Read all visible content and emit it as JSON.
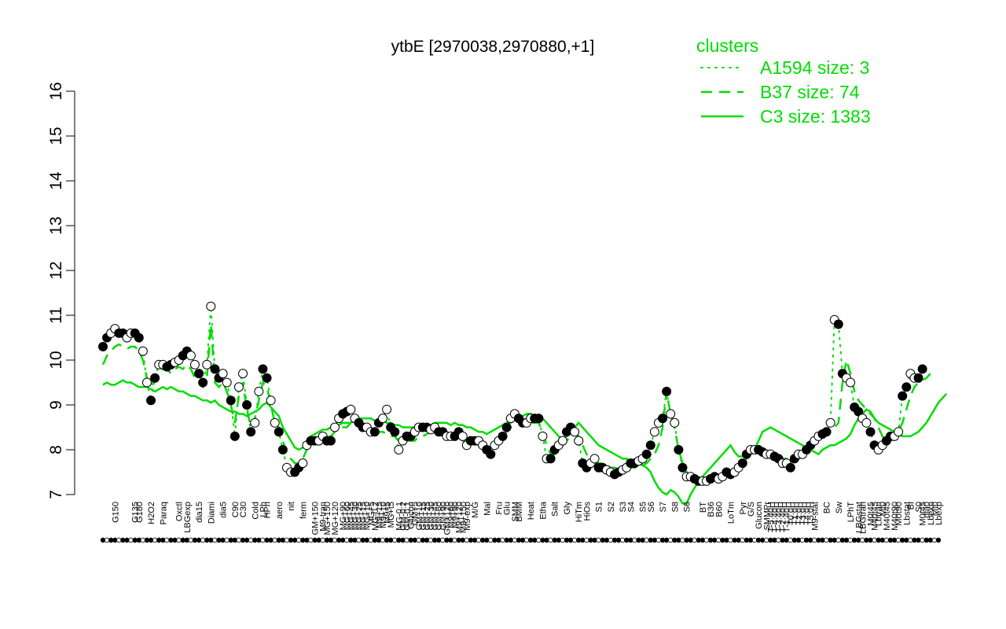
{
  "chart_data": {
    "type": "line",
    "title": "ytbE [2970038,2970880,+1]",
    "xlabel": "",
    "ylabel": "",
    "ylim": [
      7,
      16
    ],
    "yticks": [
      7,
      8,
      9,
      10,
      11,
      12,
      13,
      14,
      15,
      16
    ],
    "n_conditions": 210,
    "xtick_labels": [
      {
        "i": 3,
        "label": "G150"
      },
      {
        "i": 8,
        "label": "G135"
      },
      {
        "i": 9,
        "label": "G180"
      },
      {
        "i": 12,
        "label": "H2O2"
      },
      {
        "i": 15,
        "label": "Paraq"
      },
      {
        "i": 19,
        "label": "Oxctl"
      },
      {
        "i": 21,
        "label": "LBGexp"
      },
      {
        "i": 24,
        "label": "dia15"
      },
      {
        "i": 27,
        "label": "Diami"
      },
      {
        "i": 30,
        "label": "dia5"
      },
      {
        "i": 33,
        "label": "C90"
      },
      {
        "i": 35,
        "label": "C30"
      },
      {
        "i": 38,
        "label": "Cold"
      },
      {
        "i": 40,
        "label": "LPh"
      },
      {
        "i": 41,
        "label": "HPh"
      },
      {
        "i": 44,
        "label": "aero"
      },
      {
        "i": 47,
        "label": "nit"
      },
      {
        "i": 50,
        "label": "ferm"
      },
      {
        "i": 53,
        "label": "GM+150"
      },
      {
        "i": 55,
        "label": "M9-tran"
      },
      {
        "i": 56,
        "label": "MG+150"
      },
      {
        "i": 58,
        "label": "MG+120"
      },
      {
        "i": 60,
        "label": "MG+90"
      },
      {
        "i": 61,
        "label": "MG+60"
      },
      {
        "i": 62,
        "label": "MG+45"
      },
      {
        "i": 63,
        "label": "MG+30"
      },
      {
        "i": 64,
        "label": "MG+25"
      },
      {
        "i": 65,
        "label": "MG+15"
      },
      {
        "i": 66,
        "label": "MG+10"
      },
      {
        "i": 67,
        "label": "MG+5"
      },
      {
        "i": 68,
        "label": "MG-0.2"
      },
      {
        "i": 69,
        "label": "M9+15"
      },
      {
        "i": 70,
        "label": "M9+10"
      },
      {
        "i": 71,
        "label": "M9+5"
      },
      {
        "i": 72,
        "label": "MG+t5"
      },
      {
        "i": 74,
        "label": "MG-0.1"
      },
      {
        "i": 75,
        "label": "GM-0.2"
      },
      {
        "i": 76,
        "label": "GM-0.1"
      },
      {
        "i": 77,
        "label": "Glucon"
      },
      {
        "i": 78,
        "label": "GM+5"
      },
      {
        "i": 79,
        "label": "GM+10"
      },
      {
        "i": 80,
        "label": "GM+15"
      },
      {
        "i": 81,
        "label": "GM+25"
      },
      {
        "i": 82,
        "label": "GM+30"
      },
      {
        "i": 83,
        "label": "GM+45"
      },
      {
        "i": 84,
        "label": "GM+60"
      },
      {
        "i": 85,
        "label": "GM+90"
      },
      {
        "i": 86,
        "label": "GM+120"
      },
      {
        "i": 87,
        "label": "M9+60"
      },
      {
        "i": 88,
        "label": "M9+90"
      },
      {
        "i": 89,
        "label": "M9+120"
      },
      {
        "i": 90,
        "label": "M9+150"
      },
      {
        "i": 91,
        "label": "M9-exp"
      },
      {
        "i": 93,
        "label": "M/G"
      },
      {
        "i": 96,
        "label": "Mal"
      },
      {
        "i": 99,
        "label": "Fru"
      },
      {
        "i": 101,
        "label": "Glu"
      },
      {
        "i": 103,
        "label": "SMM"
      },
      {
        "i": 104,
        "label": "BMM"
      },
      {
        "i": 107,
        "label": "Heat"
      },
      {
        "i": 110,
        "label": "Etha"
      },
      {
        "i": 113,
        "label": "Salt"
      },
      {
        "i": 116,
        "label": "Gly"
      },
      {
        "i": 119,
        "label": "HiTm"
      },
      {
        "i": 121,
        "label": "HiOs"
      },
      {
        "i": 124,
        "label": "S1"
      },
      {
        "i": 127,
        "label": "S2"
      },
      {
        "i": 130,
        "label": "S3"
      },
      {
        "i": 132,
        "label": "S4"
      },
      {
        "i": 135,
        "label": "S5"
      },
      {
        "i": 137,
        "label": "S6"
      },
      {
        "i": 140,
        "label": "S7"
      },
      {
        "i": 143,
        "label": "S8"
      },
      {
        "i": 146,
        "label": "S6"
      },
      {
        "i": 150,
        "label": "BT"
      },
      {
        "i": 152,
        "label": "B36"
      },
      {
        "i": 154,
        "label": "B60"
      },
      {
        "i": 157,
        "label": "LoTm"
      },
      {
        "i": 160,
        "label": "Pyr"
      },
      {
        "i": 162,
        "label": "G/S"
      },
      {
        "i": 164,
        "label": "Glucon"
      },
      {
        "i": 166,
        "label": "SMMPr"
      },
      {
        "i": 167,
        "label": "T-5.40H"
      },
      {
        "i": 168,
        "label": "T-4.40H"
      },
      {
        "i": 169,
        "label": "T-3.40H"
      },
      {
        "i": 170,
        "label": "T-2.40H"
      },
      {
        "i": 171,
        "label": "T-1.40H"
      },
      {
        "i": 172,
        "label": "T0.0H"
      },
      {
        "i": 173,
        "label": "T1.0H"
      },
      {
        "i": 174,
        "label": "T2.0H"
      },
      {
        "i": 175,
        "label": "T3.0H"
      },
      {
        "i": 176,
        "label": "T4.0H"
      },
      {
        "i": 177,
        "label": "T5.0H"
      },
      {
        "i": 178,
        "label": "M9-stat"
      },
      {
        "i": 181,
        "label": "BC"
      },
      {
        "i": 184,
        "label": "Sw"
      },
      {
        "i": 187,
        "label": "LPhT"
      },
      {
        "i": 189,
        "label": "LBGstat"
      },
      {
        "i": 190,
        "label": "LBGtran"
      },
      {
        "i": 192,
        "label": "M0t45"
      },
      {
        "i": 193,
        "label": "M40t45"
      },
      {
        "i": 194,
        "label": "Lbtran"
      },
      {
        "i": 195,
        "label": "Mt0"
      },
      {
        "i": 196,
        "label": "M40t45"
      },
      {
        "i": 198,
        "label": "M40t90"
      },
      {
        "i": 199,
        "label": "M0t90"
      },
      {
        "i": 201,
        "label": "Lbstat"
      },
      {
        "i": 202,
        "label": "BI"
      },
      {
        "i": 204,
        "label": "S0"
      },
      {
        "i": 205,
        "label": "M0t45"
      },
      {
        "i": 206,
        "label": "dia0"
      },
      {
        "i": 207,
        "label": "Lbexp"
      },
      {
        "i": 208,
        "label": "Mt0"
      },
      {
        "i": 209,
        "label": "Lbexp"
      }
    ],
    "series": [
      {
        "name": "C3 size: 1383",
        "style": "solid",
        "values": [
          9.45,
          9.5,
          9.45,
          9.45,
          9.5,
          9.55,
          9.5,
          9.5,
          9.45,
          9.4,
          9.4,
          9.4,
          9.35,
          9.3,
          9.35,
          9.4,
          9.35,
          9.4,
          9.35,
          9.3,
          9.3,
          9.25,
          9.2,
          9.2,
          9.15,
          9.1,
          9.1,
          9.05,
          9.1,
          9.0,
          8.95,
          8.9,
          8.85,
          8.85,
          8.8,
          8.8,
          8.75,
          8.8,
          8.85,
          8.9,
          9.0,
          9.05,
          8.95,
          8.85,
          8.75,
          8.5,
          8.35,
          8.2,
          8.05,
          8.0,
          8.05,
          8.2,
          8.3,
          8.35,
          8.4,
          8.45,
          8.45,
          8.5,
          8.5,
          8.55,
          8.6,
          8.6,
          8.6,
          8.65,
          8.7,
          8.7,
          8.7,
          8.7,
          8.65,
          8.6,
          8.65,
          8.6,
          8.6,
          8.55,
          8.55,
          8.5,
          8.5,
          8.5,
          8.5,
          8.5,
          8.55,
          8.55,
          8.55,
          8.6,
          8.6,
          8.6,
          8.6,
          8.55,
          8.6,
          8.55,
          8.55,
          8.5,
          8.5,
          8.45,
          8.4,
          8.4,
          8.35,
          8.4,
          8.45,
          8.5,
          8.55,
          8.6,
          8.6,
          8.7,
          8.7,
          8.75,
          8.8,
          8.8,
          8.75,
          8.7,
          8.7,
          8.6,
          8.5,
          8.4,
          8.3,
          8.25,
          8.3,
          8.4,
          8.5,
          8.6,
          8.5,
          8.4,
          8.3,
          8.2,
          8.1,
          8.05,
          8.0,
          7.95,
          7.9,
          7.85,
          7.8,
          7.8,
          7.75,
          7.7,
          7.7,
          7.65,
          7.6,
          7.5,
          7.3,
          7.15,
          7.05,
          7.0,
          7.1,
          7.05,
          6.95,
          6.8,
          6.8,
          7.0,
          7.15,
          7.3,
          7.4,
          7.5,
          7.6,
          7.7,
          7.8,
          7.9,
          8.0,
          8.1,
          7.95,
          7.85,
          7.85,
          7.9,
          7.95,
          8.0,
          8.2,
          8.4,
          8.45,
          8.5,
          8.45,
          8.4,
          8.35,
          8.3,
          8.25,
          8.2,
          8.15,
          8.1,
          8.05,
          8.0,
          7.95,
          7.9,
          8.0,
          8.05,
          8.1,
          8.1,
          8.15,
          8.2,
          8.25,
          8.35,
          8.55,
          8.7,
          8.8,
          8.9,
          8.85,
          8.7,
          8.6,
          8.55,
          8.5,
          8.45,
          8.4,
          8.35,
          8.3,
          8.3,
          8.3,
          8.35,
          8.4,
          8.5,
          8.6,
          8.75,
          8.9,
          9.05,
          9.15,
          9.25
        ]
      },
      {
        "name": "B37 size: 74",
        "style": "dashed",
        "values": [
          9.9,
          10.1,
          10.2,
          10.3,
          10.35,
          10.3,
          10.25,
          10.3,
          10.3,
          10.2,
          10.0,
          9.6,
          9.4,
          9.6,
          9.7,
          9.8,
          9.8,
          9.7,
          9.8,
          9.85,
          9.8,
          9.9,
          9.8,
          9.6,
          9.5,
          9.4,
          9.6,
          10.8,
          9.5,
          9.4,
          9.5,
          9.3,
          9.0,
          8.6,
          9.2,
          9.5,
          8.9,
          8.5,
          8.7,
          9.1,
          9.5,
          9.4,
          9.0,
          8.6,
          8.5,
          8.2,
          7.9,
          7.8,
          7.7,
          7.7,
          7.8,
          8.0,
          8.1,
          8.2,
          8.2,
          8.3,
          8.3,
          8.3,
          8.4,
          8.5,
          8.5,
          8.5,
          8.6,
          8.6,
          8.55,
          8.5,
          8.5,
          8.5,
          8.45,
          8.4,
          8.4,
          8.35,
          8.3,
          8.3,
          8.2,
          8.2,
          8.2,
          8.2,
          8.2,
          8.3,
          8.3,
          8.35,
          8.4,
          8.4,
          8.4,
          8.35,
          8.3,
          8.3,
          8.3,
          8.3,
          8.2,
          8.2,
          8.2,
          8.15,
          8.1,
          8.1,
          8.1,
          8.1,
          8.15,
          8.2,
          8.3,
          8.4,
          8.5,
          8.6,
          8.65,
          8.7,
          8.6,
          8.6,
          8.6,
          8.6,
          8.4,
          8.1,
          7.9,
          7.9,
          8.0,
          8.1,
          8.2,
          8.3,
          8.4,
          8.3,
          8.1,
          7.9,
          7.8,
          7.7,
          7.7,
          7.7,
          7.65,
          7.6,
          7.6,
          7.55,
          7.55,
          7.55,
          7.6,
          7.6,
          7.6,
          7.65,
          7.7,
          7.8,
          7.9,
          8.1,
          8.5,
          9.3,
          8.8,
          8.5,
          8.0,
          7.7,
          7.5,
          7.4,
          7.35,
          7.3,
          7.3,
          7.3,
          7.35,
          7.4,
          7.4,
          7.4,
          7.5,
          7.5,
          7.6,
          7.6,
          7.7,
          7.8,
          7.9,
          7.95,
          7.95,
          7.95,
          7.95,
          7.9,
          7.85,
          7.85,
          7.8,
          7.8,
          7.8,
          7.8,
          7.8,
          7.85,
          7.9,
          8.0,
          8.1,
          8.2,
          8.3,
          8.4,
          8.4,
          8.5,
          8.6,
          9.5,
          10.0,
          9.7,
          9.3,
          9.1,
          9.0,
          8.9,
          8.8,
          8.7,
          8.5,
          8.3,
          8.2,
          8.2,
          8.3,
          8.4,
          8.6,
          8.9,
          9.2,
          9.4,
          9.5,
          9.55,
          9.6,
          9.7
        ]
      },
      {
        "name": "A1594 size: 3",
        "style": "dotted",
        "values": [
          10.3,
          10.5,
          10.6,
          10.7,
          10.6,
          10.6,
          10.5,
          10.6,
          10.6,
          10.5,
          10.2,
          9.5,
          9.1,
          9.6,
          9.9,
          9.9,
          9.85,
          9.9,
          9.95,
          10.0,
          10.1,
          10.2,
          10.1,
          9.9,
          9.7,
          9.5,
          9.9,
          11.2,
          9.8,
          9.6,
          9.7,
          9.5,
          9.1,
          8.3,
          9.4,
          9.7,
          9.0,
          8.4,
          8.6,
          9.3,
          9.8,
          9.6,
          9.1,
          8.6,
          8.4,
          8.0,
          7.6,
          7.5,
          7.5,
          7.6,
          7.7,
          8.1,
          8.2,
          8.2,
          8.2,
          8.3,
          8.2,
          8.2,
          8.5,
          8.7,
          8.8,
          8.85,
          8.9,
          8.7,
          8.6,
          8.5,
          8.5,
          8.4,
          8.4,
          8.6,
          8.7,
          8.9,
          8.5,
          8.4,
          8.0,
          8.2,
          8.3,
          8.3,
          8.4,
          8.5,
          8.5,
          8.5,
          8.45,
          8.5,
          8.4,
          8.4,
          8.3,
          8.3,
          8.3,
          8.4,
          8.3,
          8.1,
          8.2,
          8.2,
          8.2,
          8.1,
          8.0,
          7.9,
          8.1,
          8.2,
          8.3,
          8.5,
          8.7,
          8.8,
          8.7,
          8.6,
          8.6,
          8.7,
          8.7,
          8.7,
          8.3,
          7.8,
          7.8,
          8.0,
          8.1,
          8.2,
          8.4,
          8.5,
          8.4,
          8.2,
          7.7,
          7.6,
          7.7,
          7.8,
          7.6,
          7.6,
          7.55,
          7.5,
          7.45,
          7.5,
          7.55,
          7.6,
          7.7,
          7.7,
          7.75,
          7.8,
          7.9,
          8.1,
          8.4,
          8.6,
          8.7,
          9.3,
          8.8,
          8.6,
          8.0,
          7.6,
          7.4,
          7.4,
          7.35,
          7.3,
          7.3,
          7.3,
          7.35,
          7.4,
          7.35,
          7.4,
          7.5,
          7.45,
          7.5,
          7.6,
          7.7,
          7.9,
          8.0,
          8.0,
          8.0,
          7.95,
          7.9,
          7.9,
          7.85,
          7.8,
          7.7,
          7.7,
          7.6,
          7.8,
          7.9,
          7.9,
          8.0,
          8.1,
          8.2,
          8.3,
          8.35,
          8.4,
          8.6,
          10.9,
          10.8,
          9.7,
          9.6,
          9.5,
          8.95,
          8.85,
          8.7,
          8.6,
          8.4,
          8.1,
          8.0,
          8.1,
          8.2,
          8.3,
          8.3,
          8.4,
          9.2,
          9.4,
          9.7,
          9.6,
          9.6,
          9.8
        ]
      }
    ],
    "legend": {
      "placement": "top-right",
      "title": "clusters",
      "entries": [
        {
          "label": "A1594 size: 3",
          "style": "dotted"
        },
        {
          "label": "B37 size: 74",
          "style": "dashed"
        },
        {
          "label": "C3 size: 1383",
          "style": "solid"
        }
      ]
    },
    "colors": {
      "line": "#00dd00",
      "legend_text": "#00dd00",
      "points_dark": "#000000",
      "points_light": "#ffffff",
      "axis": "#000000"
    },
    "grid": false
  }
}
